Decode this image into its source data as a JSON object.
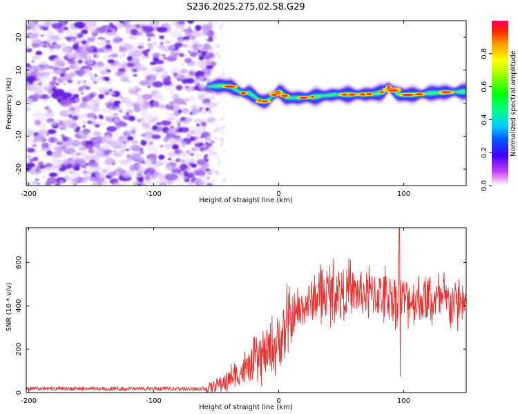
{
  "title": "S236.2025.275.02.58.G29",
  "chart_data": [
    {
      "type": "heatmap",
      "name": "spectrogram",
      "xlabel": "Height of straight line (km)",
      "ylabel": "Frequency (Hz)",
      "xlim": [
        -202,
        150
      ],
      "ylim": [
        -25,
        25
      ],
      "xticks": [
        -200,
        -100,
        0,
        100
      ],
      "yticks": [
        -20,
        -10,
        0,
        10,
        20
      ],
      "colorbar": {
        "label": "Normalized spectral amplitude",
        "range": [
          0,
          1
        ],
        "ticks": [
          0.0,
          0.2,
          0.4,
          0.6,
          0.8
        ]
      },
      "noise_region_x": [
        -202,
        -55
      ],
      "signal_track": {
        "x": [
          -57,
          -50,
          -44,
          -38,
          -33,
          -28,
          -24,
          -20,
          -16,
          -12,
          -8,
          -4,
          0,
          2,
          6,
          10,
          16,
          25,
          35,
          45,
          55,
          65,
          75,
          80,
          84,
          88,
          92,
          95,
          100,
          110,
          120,
          130,
          140,
          150
        ],
        "freq": [
          5.0,
          5.2,
          5.3,
          5.0,
          3.8,
          3.0,
          3.2,
          2.2,
          1.0,
          0.4,
          1.0,
          2.4,
          3.6,
          3.2,
          1.8,
          1.6,
          1.6,
          1.8,
          2.2,
          2.6,
          2.6,
          2.6,
          2.8,
          3.0,
          3.5,
          5.0,
          3.6,
          2.8,
          2.5,
          2.6,
          3.0,
          3.2,
          3.4,
          3.5
        ]
      }
    },
    {
      "type": "line",
      "name": "snr",
      "xlabel": "Height of straight line (km)",
      "ylabel": "SNR (10 * v/v)",
      "xlim": [
        -202,
        150
      ],
      "ylim": [
        0,
        760
      ],
      "xticks": [
        -200,
        -100,
        0,
        100
      ],
      "yticks": [
        0,
        200,
        400,
        600
      ],
      "color": "#e8312e",
      "trend": {
        "x": [
          -202,
          -60,
          -55,
          -40,
          -25,
          -15,
          -5,
          5,
          15,
          25,
          35,
          45,
          55,
          70,
          85,
          95,
          105,
          120,
          135,
          150
        ],
        "y": [
          18,
          18,
          22,
          60,
          110,
          160,
          200,
          280,
          370,
          420,
          450,
          470,
          465,
          455,
          450,
          440,
          430,
          425,
          420,
          415
        ]
      },
      "spikes": [
        {
          "x": 96.5,
          "y": 760
        },
        {
          "x": 97.3,
          "y": 75
        },
        {
          "x": 95.8,
          "y": 650
        }
      ]
    }
  ]
}
